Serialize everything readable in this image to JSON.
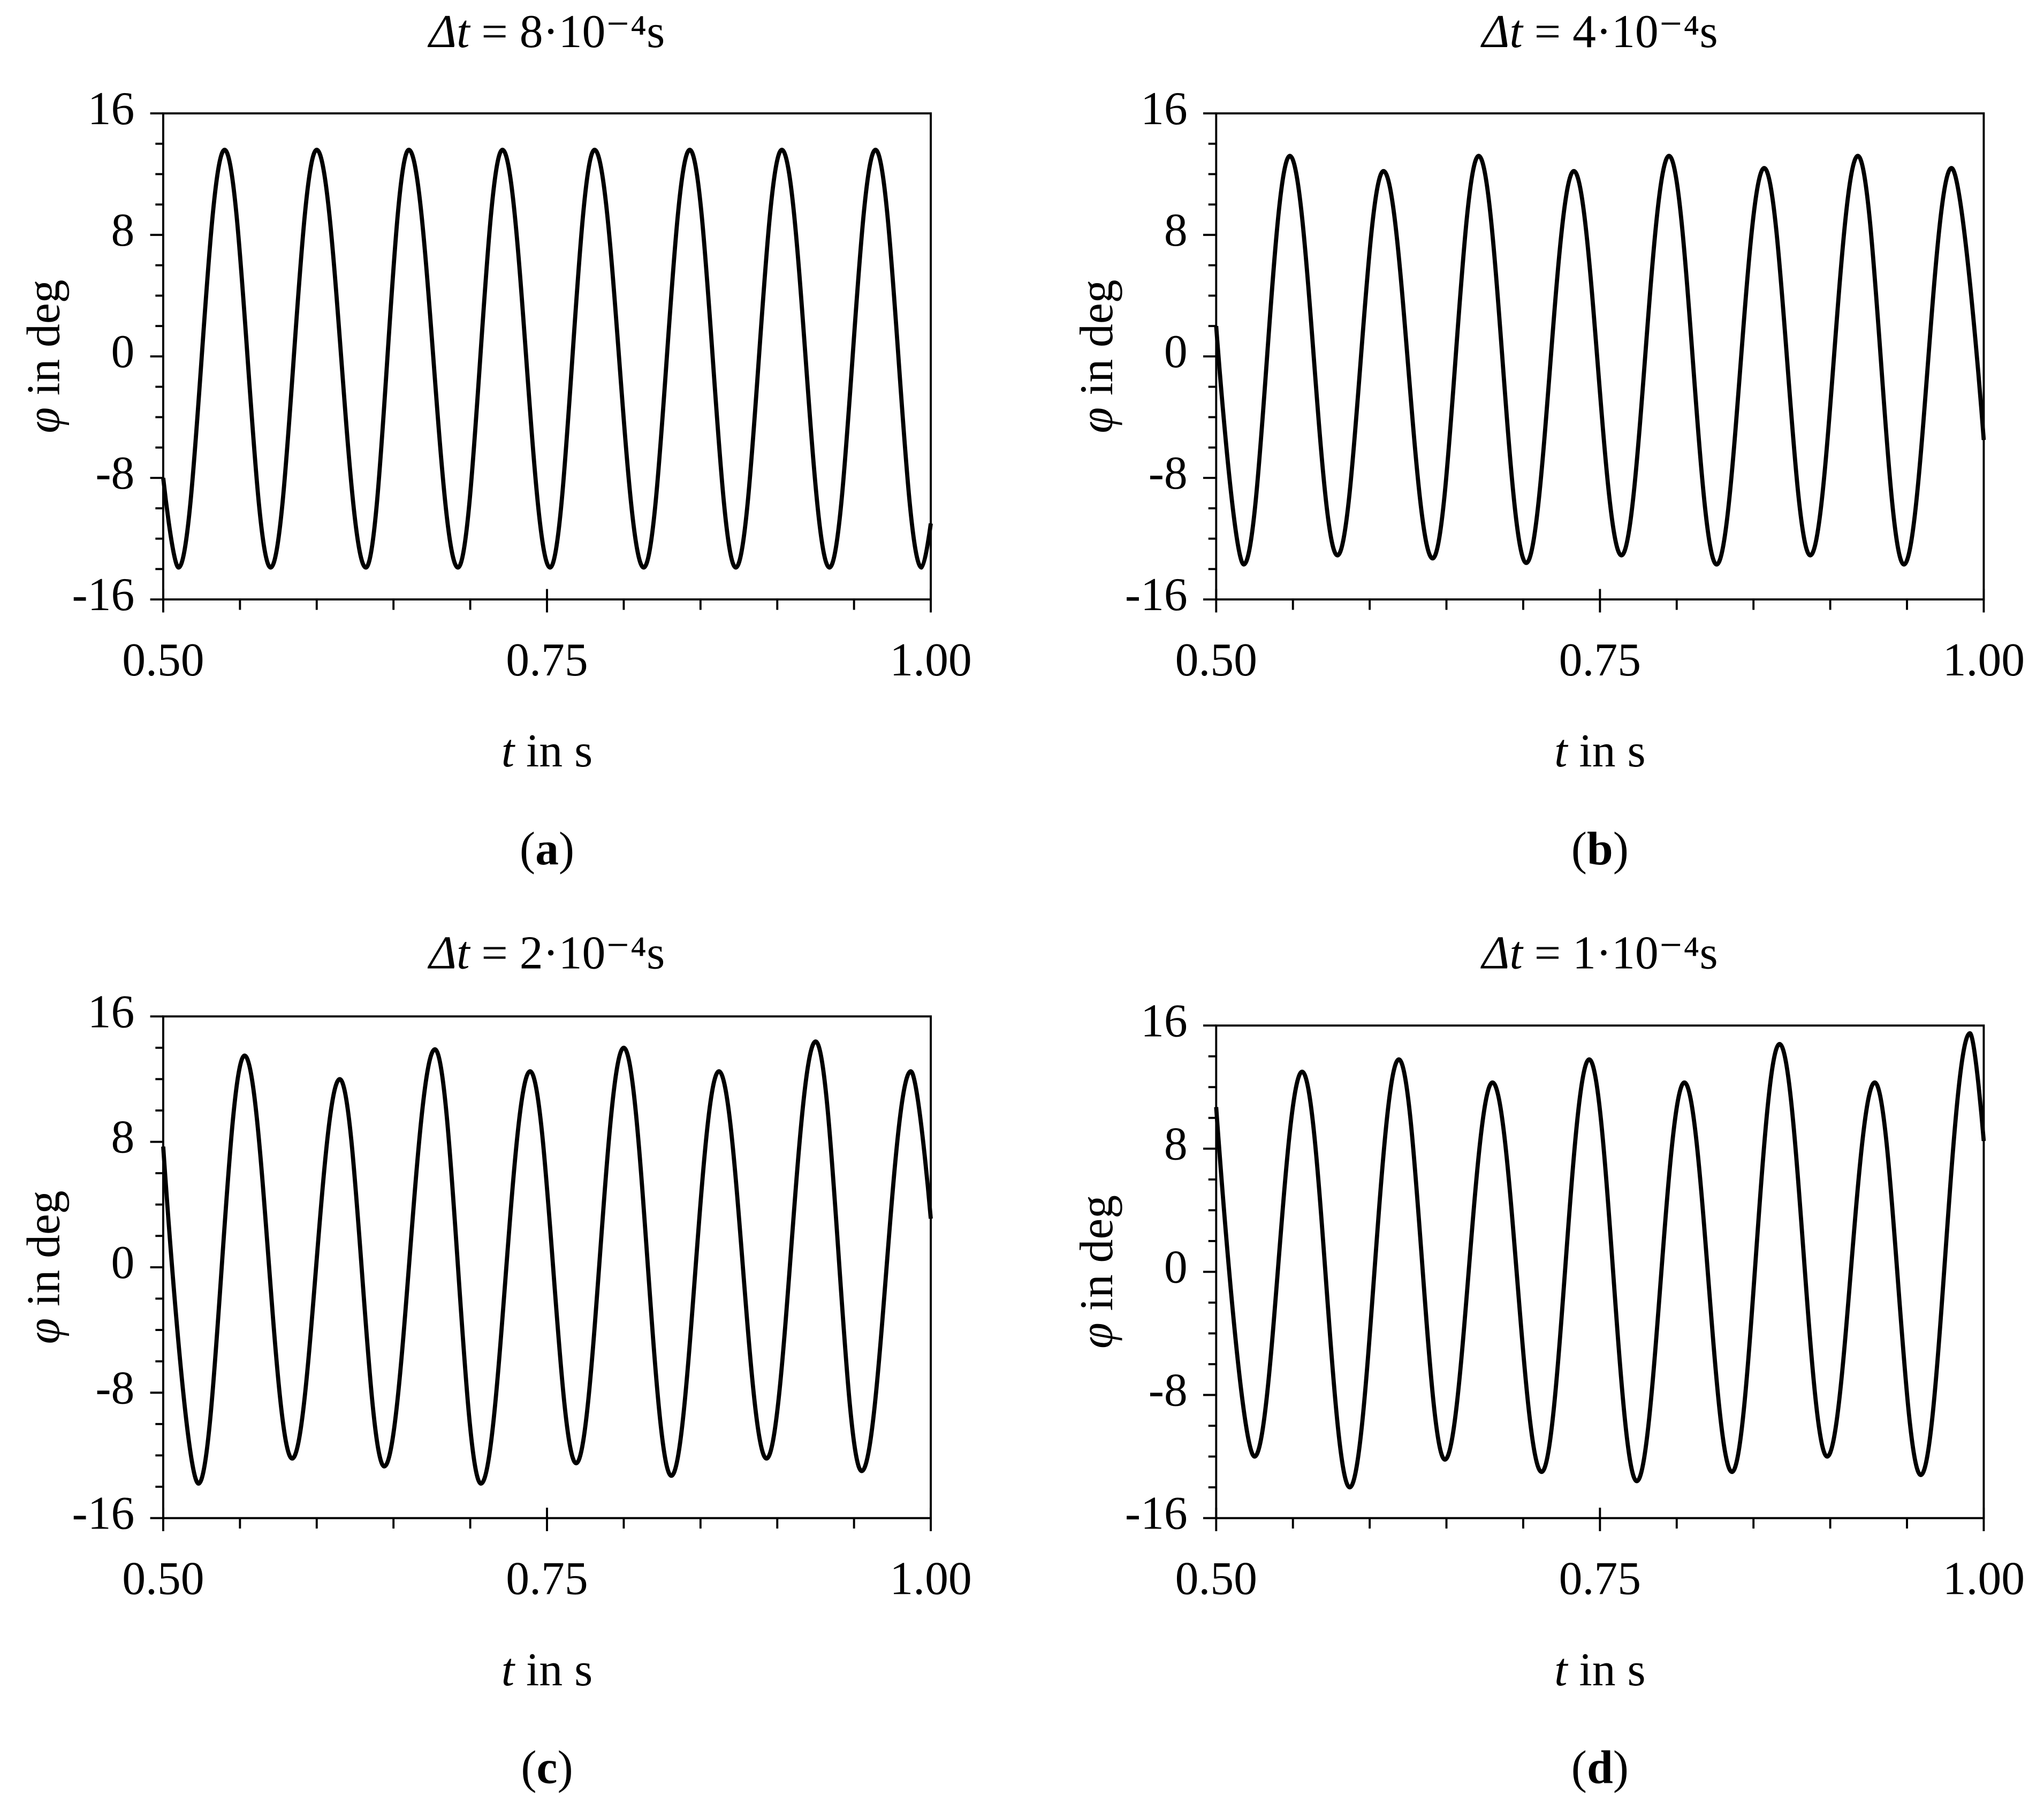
{
  "chart_data": [
    {
      "type": "line",
      "title": "Δt = 8·10⁻⁴s",
      "x_label": "t in s",
      "y_label": "φ in deg",
      "panel_label": "(a)",
      "color": "#000000",
      "x": [
        0.5,
        0.51,
        0.54,
        0.57,
        0.6,
        0.632,
        0.66,
        0.692,
        0.721,
        0.752,
        0.781,
        0.813,
        0.843,
        0.873,
        0.903,
        0.934,
        0.964,
        0.994,
        1.0
      ],
      "values": [
        -8,
        -13.9,
        13.6,
        -13.9,
        13.6,
        -13.9,
        13.6,
        -13.9,
        13.6,
        -13.9,
        13.6,
        -13.9,
        13.6,
        -13.9,
        13.6,
        -13.9,
        13.6,
        -13.9,
        -11
      ],
      "xlim": [
        0.5,
        1.0
      ],
      "ylim": [
        -16,
        16
      ],
      "xticks": [
        {
          "value": 0.5,
          "label": "0.50"
        },
        {
          "value": 0.75,
          "label": "0.75"
        },
        {
          "value": 1.0,
          "label": "1.00"
        }
      ],
      "xminorticks": [
        0.55,
        0.6,
        0.65,
        0.7,
        0.8,
        0.85,
        0.9,
        0.95
      ],
      "yticks": [
        -16,
        -8,
        0,
        8,
        16
      ],
      "yminorticks": [
        -14,
        -12,
        -10,
        -6,
        -4,
        -2,
        2,
        4,
        6,
        10,
        12,
        14
      ]
    },
    {
      "type": "line",
      "title": "Δt = 4·10⁻⁴s",
      "x_label": "t in s",
      "y_label": "φ in deg",
      "panel_label": "(b)",
      "color": "#000000",
      "x": [
        0.5,
        0.518,
        0.548,
        0.579,
        0.609,
        0.641,
        0.671,
        0.702,
        0.733,
        0.764,
        0.795,
        0.826,
        0.857,
        0.887,
        0.918,
        0.948,
        0.979,
        1.0
      ],
      "values": [
        2,
        -13.7,
        13.2,
        -13.1,
        12.2,
        -13.3,
        13.2,
        -13.6,
        12.2,
        -13.1,
        13.2,
        -13.7,
        12.4,
        -13.1,
        13.2,
        -13.7,
        12.4,
        -5.5
      ],
      "xlim": [
        0.5,
        1.0
      ],
      "ylim": [
        -16,
        16
      ],
      "xticks": [
        {
          "value": 0.5,
          "label": "0.50"
        },
        {
          "value": 0.75,
          "label": "0.75"
        },
        {
          "value": 1.0,
          "label": "1.00"
        }
      ],
      "xminorticks": [
        0.55,
        0.6,
        0.65,
        0.7,
        0.8,
        0.85,
        0.9,
        0.95
      ],
      "yticks": [
        -16,
        -8,
        0,
        8,
        16
      ],
      "yminorticks": [
        -14,
        -12,
        -10,
        -6,
        -4,
        -2,
        2,
        4,
        6,
        10,
        12,
        14
      ]
    },
    {
      "type": "line",
      "title": "Δt = 2·10⁻⁴s",
      "x_label": "t in s",
      "y_label": "φ in deg",
      "panel_label": "(c)",
      "color": "#000000",
      "x": [
        0.5,
        0.523,
        0.553,
        0.584,
        0.615,
        0.644,
        0.677,
        0.707,
        0.739,
        0.769,
        0.8,
        0.831,
        0.862,
        0.893,
        0.925,
        0.955,
        0.987,
        1.0
      ],
      "values": [
        7.7,
        -13.8,
        13.5,
        -12.2,
        12,
        -12.7,
        13.9,
        -13.8,
        12.5,
        -12.5,
        14,
        -13.3,
        12.5,
        -12.2,
        14.4,
        -13,
        12.5,
        3.1
      ],
      "xlim": [
        0.5,
        1.0
      ],
      "ylim": [
        -16,
        16
      ],
      "xticks": [
        {
          "value": 0.5,
          "label": "0.50"
        },
        {
          "value": 0.75,
          "label": "0.75"
        },
        {
          "value": 1.0,
          "label": "1.00"
        }
      ],
      "xminorticks": [
        0.55,
        0.6,
        0.65,
        0.7,
        0.8,
        0.85,
        0.9,
        0.95
      ],
      "yticks": [
        -16,
        -8,
        0,
        8,
        16
      ],
      "yminorticks": [
        -14,
        -12,
        -10,
        -6,
        -4,
        -2,
        2,
        4,
        6,
        10,
        12,
        14
      ]
    },
    {
      "type": "line",
      "title": "Δt = 1·10⁻⁴s",
      "x_label": "t in s",
      "y_label": "φ in deg",
      "panel_label": "(d)",
      "color": "#000000",
      "x": [
        0.5,
        0.525,
        0.556,
        0.587,
        0.619,
        0.649,
        0.68,
        0.712,
        0.743,
        0.774,
        0.805,
        0.836,
        0.867,
        0.898,
        0.929,
        0.959,
        0.991,
        1.0
      ],
      "values": [
        10.7,
        -12,
        13,
        -14,
        13.8,
        -12.2,
        12.3,
        -13,
        13.8,
        -13.6,
        12.3,
        -13,
        14.8,
        -12,
        12.3,
        -13.2,
        15.5,
        8.5
      ],
      "xlim": [
        0.5,
        1.0
      ],
      "ylim": [
        -16,
        16
      ],
      "xticks": [
        {
          "value": 0.5,
          "label": "0.50"
        },
        {
          "value": 0.75,
          "label": "0.75"
        },
        {
          "value": 1.0,
          "label": "1.00"
        }
      ],
      "xminorticks": [
        0.55,
        0.6,
        0.65,
        0.7,
        0.8,
        0.85,
        0.9,
        0.95
      ],
      "yticks": [
        -16,
        -8,
        0,
        8,
        16
      ],
      "yminorticks": [
        -14,
        -12,
        -10,
        -6,
        -4,
        -2,
        2,
        4,
        6,
        10,
        12,
        14
      ]
    }
  ]
}
